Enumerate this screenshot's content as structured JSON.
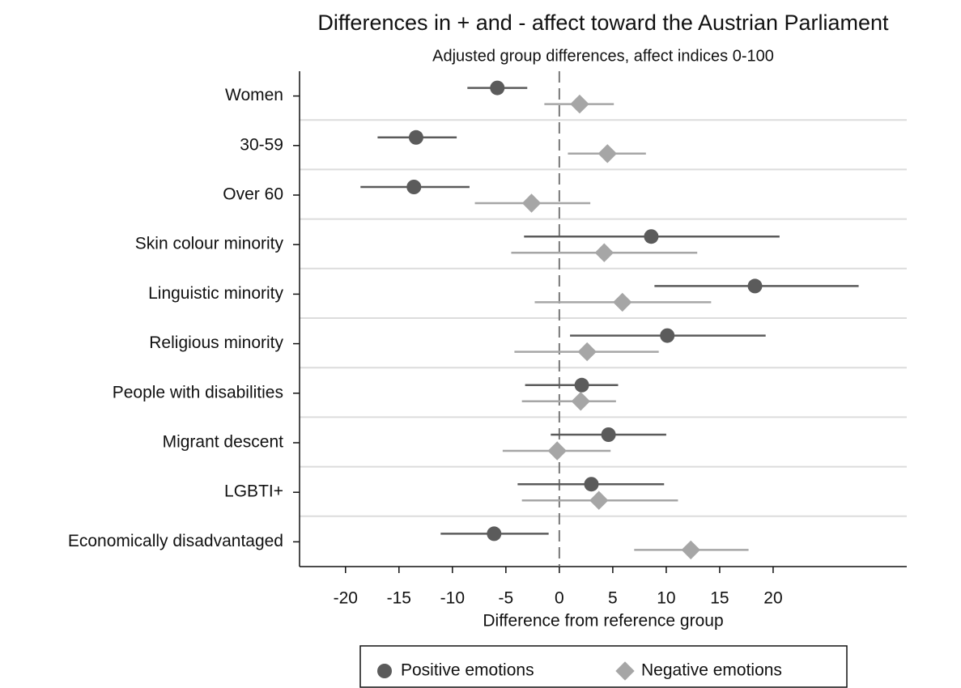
{
  "chart_data": {
    "type": "coefplot",
    "title": "Differences in + and - affect toward the Austrian Parliament",
    "subtitle": "Adjusted group differences, affect indices 0-100",
    "xlabel": "Difference from reference group",
    "categories": [
      "Women",
      "30-59",
      "Over 60",
      "Skin colour minority",
      "Linguistic minority",
      "Religious minority",
      "People with disabilities",
      "Migrant descent",
      "LGBTI+",
      "Economically disadvantaged"
    ],
    "series": [
      {
        "name": "Positive emotions",
        "color": "#5b5b5b",
        "marker": "circle",
        "values": [
          -5.8,
          -13.4,
          -13.6,
          8.6,
          18.3,
          10.1,
          2.1,
          4.6,
          3.0,
          -6.1
        ],
        "lower": [
          -8.6,
          -17.0,
          -18.6,
          -3.3,
          8.9,
          1.0,
          -3.2,
          -0.8,
          -3.9,
          -11.1
        ],
        "upper": [
          -3.0,
          -9.6,
          -8.4,
          20.6,
          28.0,
          19.3,
          5.5,
          10.0,
          9.8,
          -1.0
        ]
      },
      {
        "name": "Negative emotions",
        "color": "#a6a6a6",
        "marker": "diamond",
        "values": [
          1.9,
          4.5,
          -2.6,
          4.2,
          5.9,
          2.6,
          2.0,
          -0.2,
          3.7,
          12.3
        ],
        "lower": [
          -1.4,
          0.8,
          -7.9,
          -4.5,
          -2.3,
          -4.2,
          -3.5,
          -5.3,
          -3.5,
          7.0
        ],
        "upper": [
          5.1,
          8.1,
          2.9,
          12.9,
          14.2,
          9.3,
          5.3,
          4.8,
          11.1,
          17.7
        ]
      }
    ],
    "xlim": [
      -24.3,
      32.5
    ],
    "xticks": [
      -20,
      -15,
      -10,
      -5,
      0,
      5,
      10,
      15,
      20
    ],
    "xline": 0,
    "legend": "bottom"
  }
}
